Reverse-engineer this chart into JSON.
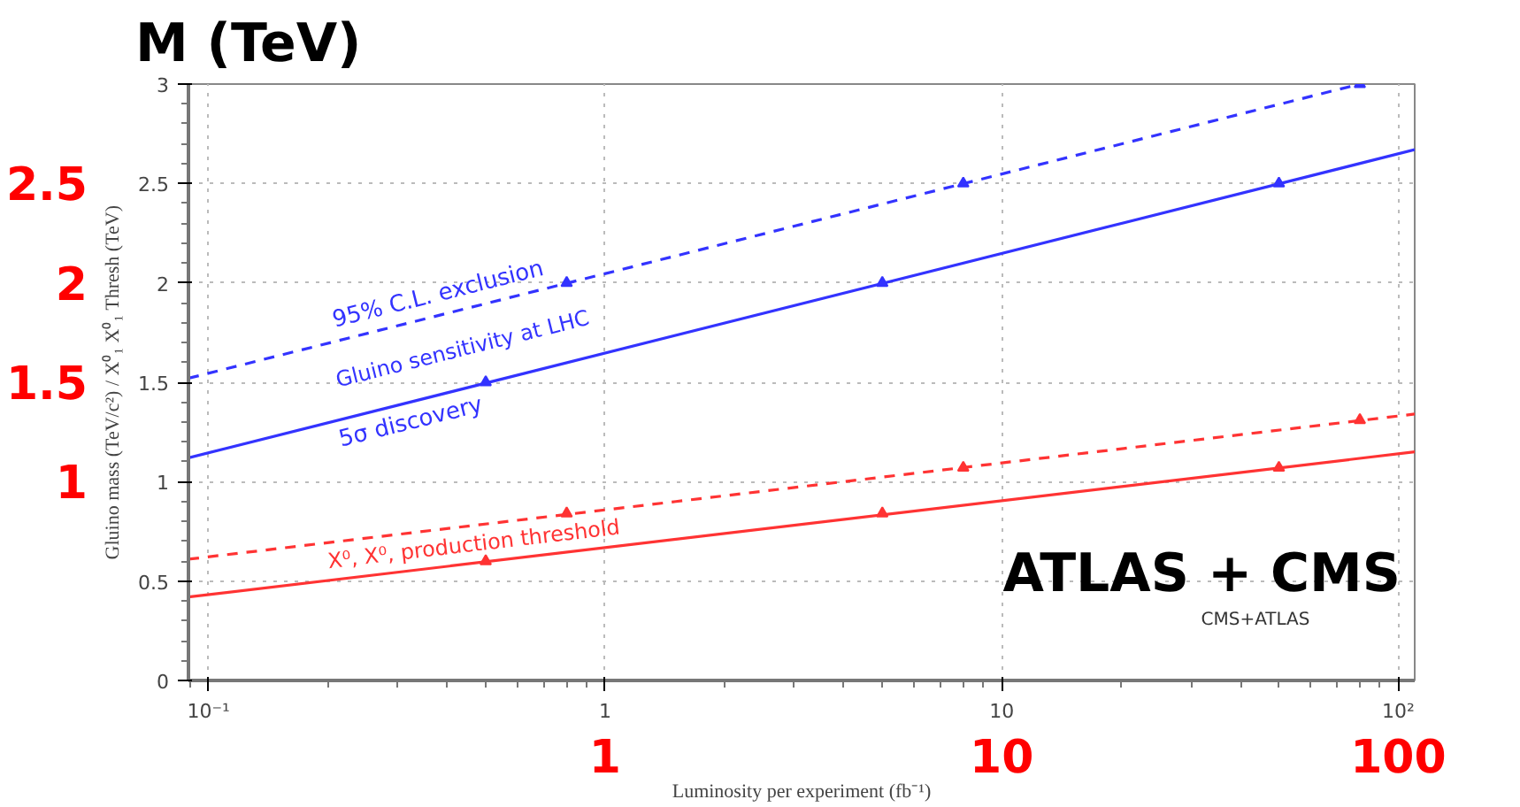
{
  "chart_data": {
    "type": "line",
    "xlabel": "Luminosity per experiment (fb⁻¹)",
    "ylabel": "Gluino mass (TeV/c²) / X⁰₁ X⁰₁ Thresh (TeV)",
    "log": "x",
    "grid": true,
    "legend": false,
    "xlim": [
      0.089,
      110
    ],
    "ylim": [
      0,
      3
    ],
    "xticks": [
      {
        "value": 0.1,
        "label": "10⁻¹"
      },
      1,
      10,
      {
        "value": 100,
        "label": "10²"
      }
    ],
    "yticks": [
      0,
      0.5,
      1,
      1.5,
      2,
      2.5,
      3
    ],
    "series": [
      {
        "name": "95% C.L. exclusion",
        "color": "#3333ff",
        "line_style": "dashed",
        "marker": "none",
        "x": [
          0.089,
          80
        ],
        "values": [
          1.52,
          3.0
        ]
      },
      {
        "name": "5σ discovery",
        "color": "#3333ff",
        "line_style": "solid",
        "marker": "none",
        "x": [
          0.089,
          110
        ],
        "values": [
          1.12,
          2.67
        ]
      },
      {
        "color": "#ff3333",
        "line_style": "dashed",
        "marker": "none",
        "x": [
          0.089,
          110
        ],
        "values": [
          0.61,
          1.34
        ]
      },
      {
        "color": "#ff3333",
        "line_style": "solid",
        "marker": "none",
        "x": [
          0.089,
          110
        ],
        "values": [
          0.42,
          1.15
        ]
      },
      {
        "type": "scatter",
        "color": "#3333ff",
        "marker": "triangle",
        "x": [
          0.8,
          8,
          80
        ],
        "values": [
          2.0,
          2.5,
          3.0
        ]
      },
      {
        "type": "scatter",
        "color": "#3333ff",
        "marker": "triangle",
        "x": [
          0.5,
          5,
          50
        ],
        "values": [
          1.5,
          2.0,
          2.5
        ]
      },
      {
        "type": "scatter",
        "color": "#ff3333",
        "marker": "triangle",
        "x": [
          0.8,
          8,
          80
        ],
        "values": [
          0.84,
          1.07,
          1.31
        ]
      },
      {
        "type": "scatter",
        "color": "#ff3333",
        "marker": "triangle",
        "x": [
          0.5,
          5,
          50
        ],
        "values": [
          0.6,
          0.84,
          1.07
        ]
      }
    ],
    "annotations": [
      "Gluino sensitivity at LHC",
      "X⁰, X⁰, production threshold",
      "M (TeV)",
      "2.5",
      "2",
      "1.5",
      "1",
      "1",
      "10",
      "100",
      "ATLAS + CMS",
      "CMS+ATLAS"
    ]
  }
}
